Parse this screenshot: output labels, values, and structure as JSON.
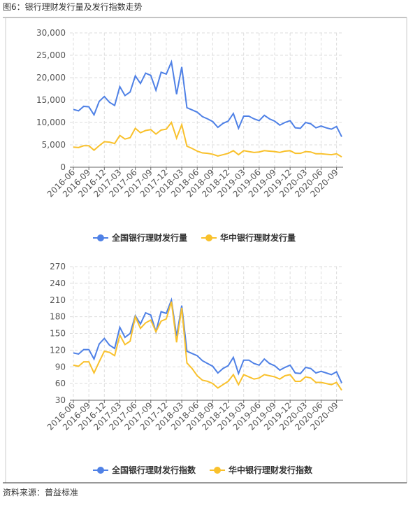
{
  "title": "图6：银行理财发行量及发行指数走势",
  "source": "资料来源：普益标准",
  "chart_data": [
    {
      "type": "line",
      "categories": [
        "2016-06",
        null,
        null,
        "2016-09",
        null,
        null,
        "2016-12",
        null,
        null,
        "2017-03",
        null,
        null,
        "2017-06",
        null,
        null,
        "2017-09",
        null,
        null,
        "2017-12",
        null,
        null,
        "2018-03",
        null,
        null,
        "2018-06",
        null,
        null,
        "2018-09",
        null,
        null,
        "2018-12",
        null,
        null,
        "2019-03",
        null,
        null,
        "2019-06",
        null,
        null,
        "2019-09",
        null,
        null,
        "2019-12",
        null,
        null,
        "2020-03",
        null,
        null,
        "2020-06",
        null,
        null,
        "2020-09",
        null
      ],
      "series": [
        {
          "name": "全国银行理财发行量",
          "color": "#4f81e6",
          "values": [
            12900,
            12600,
            13600,
            13500,
            11700,
            14700,
            15800,
            14500,
            13800,
            18000,
            16000,
            16800,
            20400,
            18700,
            21000,
            20500,
            17200,
            21200,
            20800,
            23500,
            16300,
            22400,
            13300,
            12800,
            12300,
            11300,
            10800,
            10200,
            8900,
            9800,
            10300,
            12000,
            8700,
            11400,
            11400,
            10800,
            10400,
            11600,
            10800,
            10300,
            9400,
            10000,
            10400,
            8800,
            8700,
            10000,
            9700,
            8800,
            9200,
            8800,
            8500,
            9100,
            6800
          ]
        },
        {
          "name": "华中银行理财发行量",
          "color": "#f9c12c",
          "values": [
            4500,
            4400,
            4800,
            4800,
            3800,
            4800,
            5700,
            5600,
            5300,
            7100,
            6300,
            6600,
            8700,
            7700,
            8200,
            8400,
            7400,
            8300,
            8500,
            10000,
            6500,
            9500,
            4700,
            4200,
            3600,
            3200,
            3100,
            2900,
            2500,
            2800,
            3100,
            3700,
            2800,
            3700,
            3500,
            3300,
            3400,
            3700,
            3600,
            3500,
            3300,
            3600,
            3700,
            3100,
            3100,
            3500,
            3400,
            3000,
            3000,
            2900,
            2800,
            3000,
            2300
          ]
        }
      ],
      "ylim": [
        0,
        30000
      ],
      "yticks": [
        0,
        {
          "value": 5000,
          "label": "5,000"
        },
        {
          "value": 10000,
          "label": "10,000"
        },
        {
          "value": 15000,
          "label": "15,000"
        },
        {
          "value": 20000,
          "label": "20,000"
        },
        {
          "value": 25000,
          "label": "25,000"
        },
        {
          "value": 30000,
          "label": "30,000"
        }
      ],
      "grid": true,
      "legend": "bottom"
    },
    {
      "type": "line",
      "categories": [
        "2016-06",
        null,
        null,
        "2016-09",
        null,
        null,
        "2016-12",
        null,
        null,
        "2017-03",
        null,
        null,
        "2017-06",
        null,
        null,
        "2017-09",
        null,
        null,
        "2017-12",
        null,
        null,
        "2018-03",
        null,
        null,
        "2018-06",
        null,
        null,
        "2018-09",
        null,
        null,
        "2018-12",
        null,
        null,
        "2019-03",
        null,
        null,
        "2019-06",
        null,
        null,
        "2019-09",
        null,
        null,
        "2019-12",
        null,
        null,
        "2020-03",
        null,
        null,
        "2020-06",
        null,
        null,
        "2020-09",
        null
      ],
      "series": [
        {
          "name": "全国银行理财发行指数",
          "color": "#4f81e6",
          "values": [
            115,
            113,
            121,
            121,
            104,
            131,
            141,
            129,
            123,
            161,
            143,
            150,
            182,
            167,
            187,
            183,
            153,
            189,
            186,
            210,
            145,
            200,
            118,
            114,
            110,
            101,
            96,
            91,
            79,
            87,
            92,
            107,
            78,
            102,
            102,
            96,
            93,
            104,
            96,
            92,
            84,
            89,
            93,
            79,
            78,
            89,
            87,
            79,
            82,
            79,
            76,
            81,
            61
          ]
        },
        {
          "name": "华中银行理财发行指数",
          "color": "#f9c12c",
          "values": [
            93,
            91,
            99,
            99,
            79,
            99,
            118,
            116,
            110,
            147,
            130,
            136,
            180,
            159,
            169,
            174,
            153,
            172,
            176,
            207,
            134,
            196,
            97,
            87,
            74,
            66,
            64,
            60,
            52,
            58,
            64,
            76,
            58,
            76,
            72,
            68,
            70,
            76,
            74,
            72,
            68,
            74,
            76,
            64,
            64,
            72,
            70,
            62,
            62,
            60,
            58,
            62,
            48
          ]
        }
      ],
      "ylim": [
        30,
        270
      ],
      "yticks": [
        30,
        60,
        90,
        120,
        150,
        180,
        210,
        240,
        270
      ],
      "grid": true,
      "legend": "bottom"
    }
  ]
}
